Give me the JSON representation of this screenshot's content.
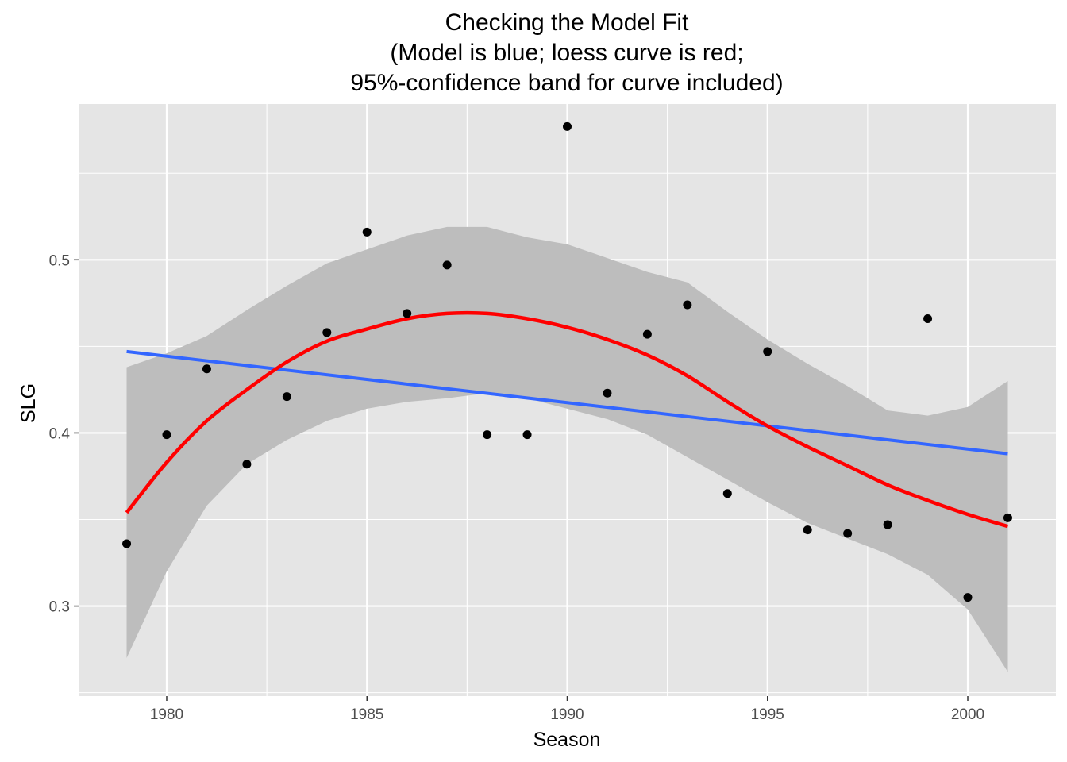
{
  "chart_data": {
    "type": "scatter",
    "title_lines": [
      "Checking the Model Fit",
      "(Model is blue; loess curve is red;",
      "95%-confidence band for curve included)"
    ],
    "xlabel": "Season",
    "ylabel": "SLG",
    "xlim": [
      1977.8,
      2002.2
    ],
    "ylim": [
      0.248,
      0.59
    ],
    "x_ticks": [
      1980,
      1985,
      1990,
      1995,
      2000
    ],
    "y_ticks": [
      0.3,
      0.4,
      0.5
    ],
    "y_tick_labels": [
      "0.3",
      "0.4",
      "0.5"
    ],
    "grid": true,
    "legend": "none",
    "colors": {
      "panel": "#e5e5e5",
      "grid": "#ffffff",
      "points": "#000000",
      "model_line": "#3366ff",
      "loess_line": "#ff0000",
      "band": "#bdbdbd"
    },
    "points": [
      {
        "x": 1979,
        "y": 0.336
      },
      {
        "x": 1980,
        "y": 0.399
      },
      {
        "x": 1981,
        "y": 0.437
      },
      {
        "x": 1982,
        "y": 0.382
      },
      {
        "x": 1983,
        "y": 0.421
      },
      {
        "x": 1984,
        "y": 0.458
      },
      {
        "x": 1985,
        "y": 0.516
      },
      {
        "x": 1986,
        "y": 0.469
      },
      {
        "x": 1987,
        "y": 0.497
      },
      {
        "x": 1988,
        "y": 0.399
      },
      {
        "x": 1989,
        "y": 0.399
      },
      {
        "x": 1990,
        "y": 0.577
      },
      {
        "x": 1991,
        "y": 0.423
      },
      {
        "x": 1992,
        "y": 0.457
      },
      {
        "x": 1993,
        "y": 0.474
      },
      {
        "x": 1994,
        "y": 0.365
      },
      {
        "x": 1995,
        "y": 0.447
      },
      {
        "x": 1996,
        "y": 0.344
      },
      {
        "x": 1997,
        "y": 0.342
      },
      {
        "x": 1998,
        "y": 0.347
      },
      {
        "x": 1999,
        "y": 0.466
      },
      {
        "x": 2000,
        "y": 0.305
      },
      {
        "x": 2001,
        "y": 0.351
      }
    ],
    "model_line": {
      "x": [
        1979,
        2001
      ],
      "y": [
        0.447,
        0.388
      ]
    },
    "loess_curve": {
      "x": [
        1979,
        1980,
        1981,
        1982,
        1983,
        1984,
        1985,
        1986,
        1987,
        1988,
        1989,
        1990,
        1991,
        1992,
        1993,
        1994,
        1995,
        1996,
        1997,
        1998,
        1999,
        2000,
        2001
      ],
      "y": [
        0.354,
        0.383,
        0.407,
        0.425,
        0.441,
        0.453,
        0.46,
        0.466,
        0.469,
        0.469,
        0.466,
        0.461,
        0.454,
        0.445,
        0.433,
        0.418,
        0.404,
        0.392,
        0.381,
        0.37,
        0.361,
        0.353,
        0.346
      ]
    },
    "band_upper": {
      "x": [
        1979,
        1980,
        1981,
        1982,
        1983,
        1984,
        1985,
        1986,
        1987,
        1988,
        1989,
        1990,
        1991,
        1992,
        1993,
        1994,
        1995,
        1996,
        1997,
        1998,
        1999,
        2000,
        2001
      ],
      "y": [
        0.438,
        0.446,
        0.456,
        0.471,
        0.485,
        0.498,
        0.506,
        0.514,
        0.519,
        0.519,
        0.513,
        0.509,
        0.501,
        0.493,
        0.487,
        0.47,
        0.454,
        0.44,
        0.427,
        0.413,
        0.41,
        0.415,
        0.43
      ]
    },
    "band_lower": {
      "x": [
        1979,
        1980,
        1981,
        1982,
        1983,
        1984,
        1985,
        1986,
        1987,
        1988,
        1989,
        1990,
        1991,
        1992,
        1993,
        1994,
        1995,
        1996,
        1997,
        1998,
        1999,
        2000,
        2001
      ],
      "y": [
        0.27,
        0.32,
        0.358,
        0.382,
        0.396,
        0.407,
        0.414,
        0.418,
        0.42,
        0.423,
        0.42,
        0.414,
        0.408,
        0.399,
        0.386,
        0.373,
        0.36,
        0.348,
        0.339,
        0.33,
        0.318,
        0.298,
        0.262
      ]
    }
  }
}
